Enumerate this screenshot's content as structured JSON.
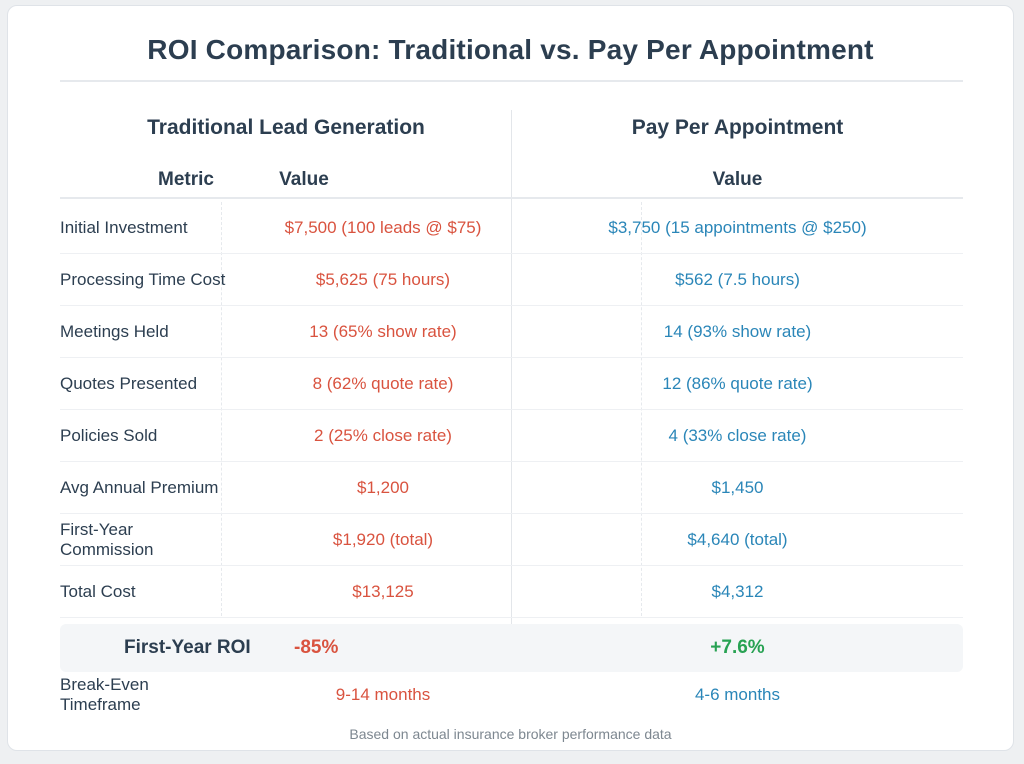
{
  "title": "ROI Comparison: Traditional vs. Pay Per Appointment",
  "sections": {
    "traditional": "Traditional Lead Generation",
    "ppa": "Pay Per Appointment"
  },
  "columns": {
    "metric": "Metric",
    "trad_value": "Value",
    "ppa_value": "Value"
  },
  "rows": [
    {
      "metric": "Initial Investment",
      "traditional": "$7,500 (100 leads @ $75)",
      "ppa": "$3,750 (15 appointments @ $250)"
    },
    {
      "metric": "Processing Time Cost",
      "traditional": "$5,625 (75 hours)",
      "ppa": "$562 (7.5 hours)"
    },
    {
      "metric": "Meetings Held",
      "traditional": "13 (65% show rate)",
      "ppa": "14 (93% show rate)"
    },
    {
      "metric": "Quotes Presented",
      "traditional": "8 (62% quote rate)",
      "ppa": "12 (86% quote rate)"
    },
    {
      "metric": "Policies Sold",
      "traditional": "2 (25% close rate)",
      "ppa": "4 (33% close rate)"
    },
    {
      "metric": "Avg Annual Premium",
      "traditional": "$1,200",
      "ppa": "$1,450"
    },
    {
      "metric": "First-Year Commission",
      "traditional": "$1,920 (total)",
      "ppa": "$4,640 (total)"
    },
    {
      "metric": "Total Cost",
      "traditional": "$13,125",
      "ppa": "$4,312"
    }
  ],
  "roi": {
    "label": "First-Year ROI",
    "traditional": "-85%",
    "ppa": "+7.6%"
  },
  "break_even": {
    "metric": "Break-Even Timeframe",
    "traditional": "9-14 months",
    "ppa": "4-6 months"
  },
  "footnote": "Based on actual insurance broker performance data",
  "colors": {
    "heading": "#2c3e50",
    "traditional": "#d9533f",
    "ppa": "#2a86b8",
    "positive": "#28a253",
    "muted": "#7d8790"
  }
}
